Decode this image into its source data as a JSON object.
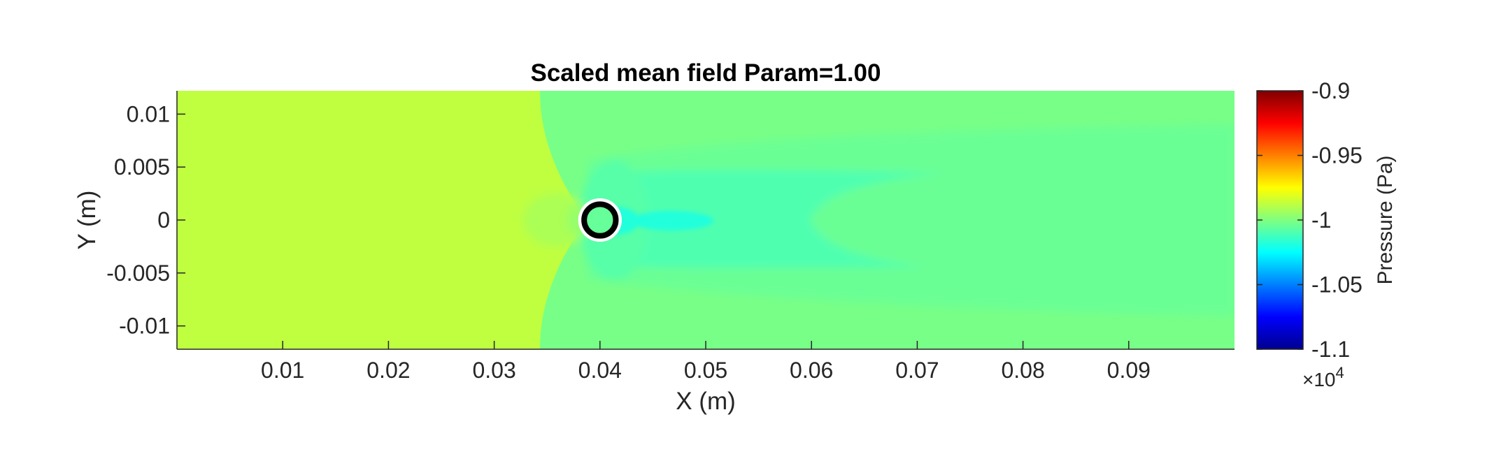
{
  "chart_data": {
    "type": "heatmap",
    "title": "Scaled mean field Param=1.00",
    "xlabel": "X (m)",
    "ylabel": "Y (m)",
    "xlim": [
      0,
      0.1
    ],
    "ylim": [
      -0.0122,
      0.0122
    ],
    "xticks": [
      0.01,
      0.02,
      0.03,
      0.04,
      0.05,
      0.06,
      0.07,
      0.08,
      0.09
    ],
    "xtick_labels": [
      "0.01",
      "0.02",
      "0.03",
      "0.04",
      "0.05",
      "0.06",
      "0.07",
      "0.08",
      "0.09"
    ],
    "yticks": [
      0.01,
      0.005,
      0,
      -0.005,
      -0.01
    ],
    "ytick_labels": [
      "0.01",
      "0.005",
      "0",
      "-0.005",
      "-0.01"
    ],
    "colormap": "jet",
    "field_levels": {
      "upstream": -0.9875,
      "stagnation": -0.9955,
      "front_lobe": -0.9915,
      "near_body": -1.008,
      "wake_core": -1.018,
      "wake_mid": -1.0095,
      "wake_outer": -1.004,
      "far_field": -1.0015,
      "body_interior": -1.005
    },
    "obstacle": {
      "shape": "circle",
      "center": [
        0.04,
        0.0
      ],
      "radius": 0.0013
    },
    "colorbar": {
      "label": "Pressure (Pa)",
      "range": [
        -1.1,
        -0.9
      ],
      "ticks": [
        -0.9,
        -0.95,
        -1,
        -1.05,
        -1.1
      ],
      "tick_labels": [
        "-0.9",
        "-0.95",
        "-1",
        "-1.05",
        "-1.1"
      ],
      "exponent_prefix": "×10",
      "exponent": "4",
      "location": "right"
    },
    "grid": false
  }
}
